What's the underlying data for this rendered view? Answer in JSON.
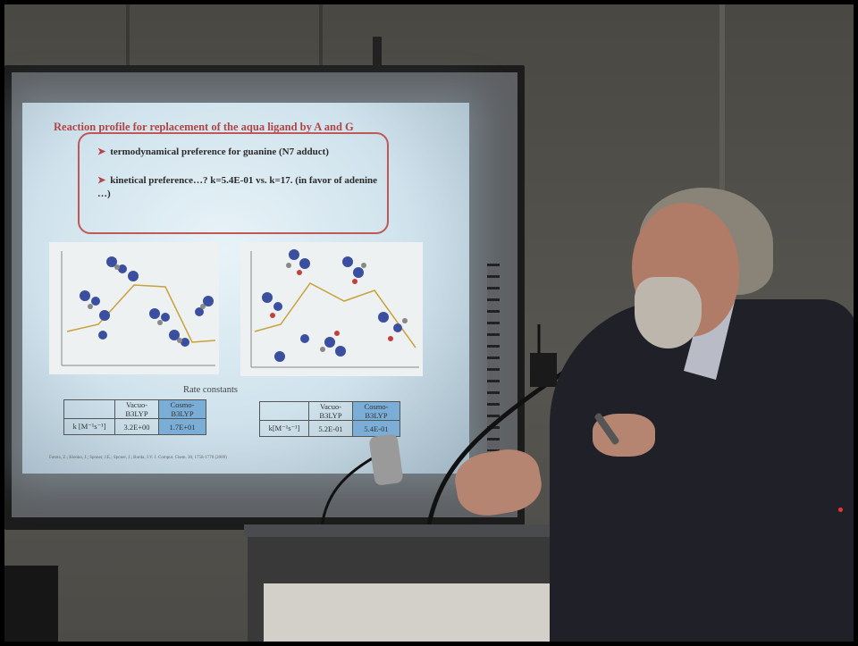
{
  "slide": {
    "title": "Reaction profile for replacement of the aqua ligand by A and G",
    "bullets": [
      "termodynamical preference for guanine (N7 adduct)",
      "kinetical preference…?  k=5.4E-01 vs. k=17. (in favor of adenine …)"
    ],
    "rate_caption": "Rate constants",
    "table1": {
      "headers": [
        "",
        "Vacuo-B3LYP",
        "Cosmo-B3LYP"
      ],
      "row_label": "k [M⁻¹s⁻¹]",
      "values": [
        "3.2E+00",
        "1.7E+01"
      ]
    },
    "table2": {
      "headers": [
        "",
        "Vacuo-B3LYP",
        "Cosmo-B3LYP"
      ],
      "row_label": "k[M⁻¹s⁻¹]",
      "values": [
        "5.2E-01",
        "5.4E-01"
      ]
    },
    "reference": "Futera, Z.; Klenko, J.; Sponer, J.E.; Sponer, J.; Burda, J.V. J. Comput. Chem. 30, 1758-1770 (2009)"
  },
  "colors": {
    "slide_title": "#b04545",
    "bullet_box_border": "#c05858",
    "table_highlight": "#7aaed6",
    "jacket": "#1f2028"
  }
}
